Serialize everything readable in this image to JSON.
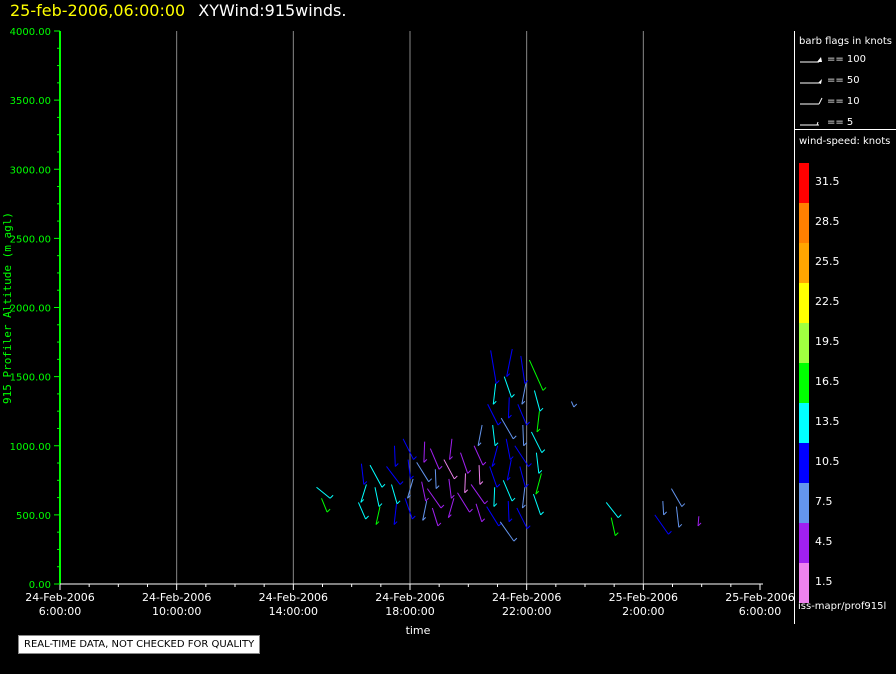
{
  "header": {
    "date": "25-feb-2006,06:00:00",
    "name": "XYWind:915winds."
  },
  "legend": {
    "barb_title": "barb flags in knots",
    "barbs": [
      {
        "label": "== 100",
        "kind": "pennant"
      },
      {
        "label": "== 50",
        "kind": "flag"
      },
      {
        "label": "== 10",
        "kind": "full"
      },
      {
        "label": "== 5",
        "kind": "half"
      }
    ],
    "speed_title": "wind-speed: knots",
    "colorbar": [
      {
        "label": "31.5",
        "color": "#ff0000"
      },
      {
        "label": "28.5",
        "color": "#ff8000"
      },
      {
        "label": "25.5",
        "color": "#ffa500"
      },
      {
        "label": "22.5",
        "color": "#ffff00"
      },
      {
        "label": "19.5",
        "color": "#a0ff40"
      },
      {
        "label": "16.5",
        "color": "#00ff00"
      },
      {
        "label": "13.5",
        "color": "#00ffff"
      },
      {
        "label": "10.5",
        "color": "#0000ff"
      },
      {
        "label": "7.5",
        "color": "#6495ed"
      },
      {
        "label": "4.5",
        "color": "#a020f0"
      },
      {
        "label": "1.5",
        "color": "#ee82ee"
      }
    ],
    "source": "iss-mapr/prof915l"
  },
  "footer": {
    "qa_note": "REAL-TIME DATA, NOT CHECKED FOR QUALITY"
  },
  "chart_data": {
    "type": "scatter",
    "title": "XYWind:915winds.",
    "xlabel": "time",
    "ylabel": "915 Profiler Altitude (m agl)",
    "x_ticks": [
      {
        "date": "24-Feb-2006",
        "time": "6:00:00"
      },
      {
        "date": "24-Feb-2006",
        "time": "10:00:00"
      },
      {
        "date": "24-Feb-2006",
        "time": "14:00:00"
      },
      {
        "date": "24-Feb-2006",
        "time": "18:00:00"
      },
      {
        "date": "24-Feb-2006",
        "time": "22:00:00"
      },
      {
        "date": "25-Feb-2006",
        "time": "2:00:00"
      },
      {
        "date": "25-Feb-2006",
        "time": "6:00:00"
      }
    ],
    "y_ticks": [
      "0.00",
      "500.00",
      "1000.00",
      "1500.00",
      "2000.00",
      "2500.00",
      "3000.00",
      "3500.00",
      "4000.00"
    ],
    "x_range_hours": [
      0,
      24
    ],
    "ylim": [
      0,
      4000
    ],
    "grid": "vertical",
    "legend": "right",
    "series": [
      {
        "hour": 9.0,
        "segs": [
          [
            620,
            700
          ],
          [
            520,
            620
          ]
        ],
        "spd": 16
      },
      {
        "hour": 10.3,
        "segs": [
          [
            720,
            870
          ],
          [
            590,
            720
          ],
          [
            470,
            590
          ]
        ],
        "spd": 12
      },
      {
        "hour": 10.8,
        "segs": [
          [
            700,
            860
          ],
          [
            560,
            700
          ],
          [
            430,
            560
          ]
        ],
        "spd": 14
      },
      {
        "hour": 11.4,
        "segs": [
          [
            850,
            1000
          ],
          [
            720,
            850
          ],
          [
            580,
            720
          ],
          [
            430,
            580
          ]
        ],
        "spd": 10
      },
      {
        "hour": 11.9,
        "segs": [
          [
            900,
            1050
          ],
          [
            760,
            900
          ],
          [
            620,
            760
          ],
          [
            470,
            620
          ]
        ],
        "spd": 9
      },
      {
        "hour": 12.4,
        "segs": [
          [
            880,
            1030
          ],
          [
            740,
            880
          ],
          [
            600,
            740
          ],
          [
            460,
            600
          ]
        ],
        "spd": 6
      },
      {
        "hour": 12.8,
        "segs": [
          [
            830,
            980
          ],
          [
            690,
            830
          ],
          [
            550,
            690
          ],
          [
            420,
            550
          ]
        ],
        "spd": 5
      },
      {
        "hour": 13.3,
        "segs": [
          [
            900,
            1050
          ],
          [
            760,
            900
          ],
          [
            620,
            760
          ],
          [
            480,
            620
          ]
        ],
        "spd": 4
      },
      {
        "hour": 13.8,
        "segs": [
          [
            800,
            950
          ],
          [
            660,
            800
          ],
          [
            520,
            660
          ]
        ],
        "spd": 3
      },
      {
        "hour": 14.3,
        "segs": [
          [
            1000,
            1150
          ],
          [
            860,
            1000
          ],
          [
            720,
            860
          ],
          [
            580,
            720
          ],
          [
            450,
            580
          ]
        ],
        "spd": 4
      },
      {
        "hour": 14.8,
        "segs": [
          [
            1450,
            1690
          ],
          [
            1300,
            1450
          ],
          [
            1150,
            1300
          ],
          [
            1000,
            1150
          ],
          [
            850,
            1000
          ],
          [
            700,
            850
          ],
          [
            560,
            700
          ],
          [
            420,
            560
          ]
        ],
        "spd": 11
      },
      {
        "hour": 15.3,
        "segs": [
          [
            1500,
            1700
          ],
          [
            1350,
            1500
          ],
          [
            1200,
            1350
          ],
          [
            1050,
            1200
          ],
          [
            900,
            1050
          ],
          [
            750,
            900
          ],
          [
            600,
            750
          ],
          [
            450,
            600
          ],
          [
            310,
            450
          ]
        ],
        "spd": 10
      },
      {
        "hour": 15.8,
        "segs": [
          [
            1450,
            1650
          ],
          [
            1300,
            1450
          ],
          [
            1150,
            1300
          ],
          [
            1000,
            1150
          ],
          [
            850,
            1000
          ],
          [
            700,
            850
          ],
          [
            550,
            700
          ],
          [
            400,
            550
          ]
        ],
        "spd": 9
      },
      {
        "hour": 16.3,
        "segs": [
          [
            1400,
            1620
          ],
          [
            1250,
            1400
          ],
          [
            1100,
            1250
          ],
          [
            950,
            1100
          ],
          [
            800,
            950
          ],
          [
            650,
            800
          ],
          [
            500,
            650
          ]
        ],
        "spd": 14
      },
      {
        "hour": 17.5,
        "segs": [
          [
            1280,
            1320
          ]
        ],
        "spd": 4
      },
      {
        "hour": 18.9,
        "segs": [
          [
            480,
            590
          ],
          [
            350,
            480
          ]
        ],
        "spd": 15
      },
      {
        "hour": 20.6,
        "segs": [
          [
            500,
            600
          ],
          [
            360,
            500
          ]
        ],
        "spd": 8
      },
      {
        "hour": 21.1,
        "segs": [
          [
            560,
            690
          ],
          [
            410,
            560
          ]
        ],
        "spd": 8
      },
      {
        "hour": 21.8,
        "segs": [
          [
            420,
            490
          ]
        ],
        "spd": 3
      }
    ]
  }
}
